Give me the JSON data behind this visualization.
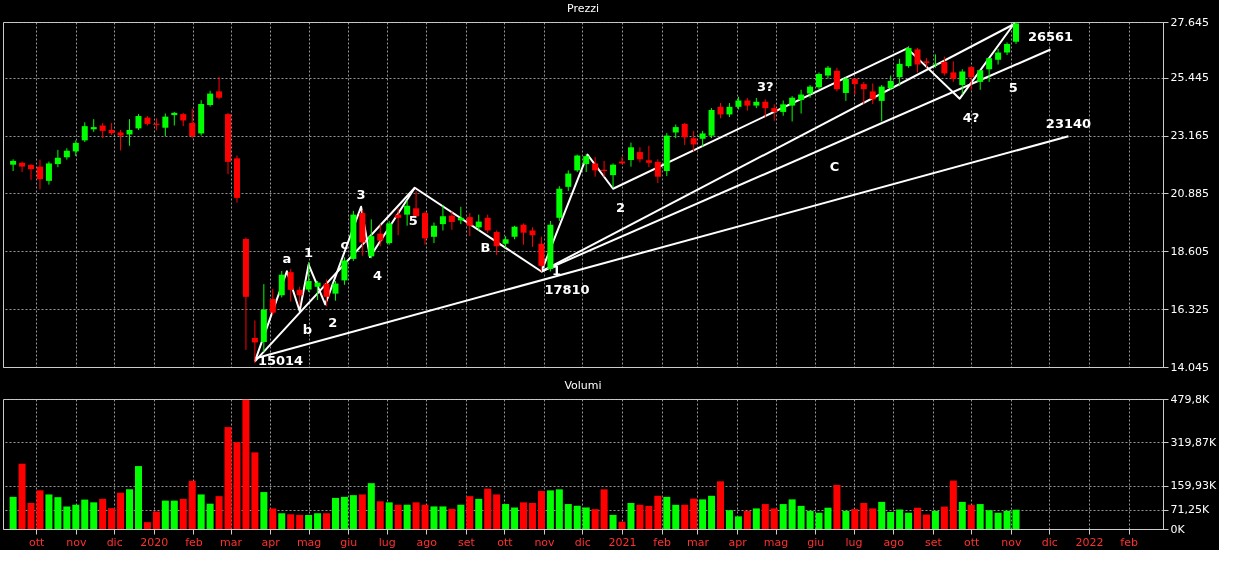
{
  "chart_data": [
    {
      "type": "candlestick",
      "title": "Prezzi",
      "x": [
        "2019-09-13",
        "2019-09-20",
        "2019-09-27",
        "2019-10-04",
        "2019-10-11",
        "2019-10-18",
        "2019-10-25",
        "2019-11-01",
        "2019-11-08",
        "2019-11-15",
        "2019-11-22",
        "2019-11-29",
        "2019-12-06",
        "2019-12-13",
        "2019-12-20",
        "2019-12-27",
        "2020-01-03",
        "2020-01-10",
        "2020-01-17",
        "2020-01-24",
        "2020-01-31",
        "2020-02-07",
        "2020-02-14",
        "2020-02-21",
        "2020-02-28",
        "2020-03-06",
        "2020-03-13",
        "2020-03-20",
        "2020-03-27",
        "2020-04-03",
        "2020-04-10",
        "2020-04-17",
        "2020-04-24",
        "2020-05-01",
        "2020-05-08",
        "2020-05-15",
        "2020-05-22",
        "2020-05-29",
        "2020-06-05",
        "2020-06-12",
        "2020-06-19",
        "2020-06-26",
        "2020-07-03",
        "2020-07-10",
        "2020-07-17",
        "2020-07-24",
        "2020-07-31",
        "2020-08-07",
        "2020-08-14",
        "2020-08-21",
        "2020-08-28",
        "2020-09-04",
        "2020-09-11",
        "2020-09-18",
        "2020-09-25",
        "2020-10-02",
        "2020-10-09",
        "2020-10-16",
        "2020-10-23",
        "2020-10-30",
        "2020-11-06",
        "2020-11-13",
        "2020-11-20",
        "2020-11-27",
        "2020-12-04",
        "2020-12-11",
        "2020-12-18",
        "2020-12-25",
        "2021-01-01",
        "2021-01-08",
        "2021-01-15",
        "2021-01-22",
        "2021-01-29",
        "2021-02-05",
        "2021-02-12",
        "2021-02-19",
        "2021-02-26",
        "2021-03-05",
        "2021-03-12",
        "2021-03-19",
        "2021-03-26",
        "2021-04-02",
        "2021-04-09",
        "2021-04-16",
        "2021-04-23",
        "2021-04-30",
        "2021-05-07",
        "2021-05-14",
        "2021-05-21",
        "2021-05-28",
        "2021-06-04",
        "2021-06-11",
        "2021-06-18",
        "2021-06-25",
        "2021-07-02",
        "2021-07-09",
        "2021-07-16",
        "2021-07-23",
        "2021-07-30",
        "2021-08-06",
        "2021-08-13",
        "2021-08-20",
        "2021-08-27",
        "2021-09-03",
        "2021-09-10",
        "2021-09-17",
        "2021-09-24",
        "2021-10-01",
        "2021-10-08",
        "2021-10-15",
        "2021-10-22",
        "2021-10-29",
        "2021-11-05"
      ],
      "ohlc": [
        [
          22020,
          22231,
          21770,
          22169
        ],
        [
          22094,
          22144,
          21733,
          21945
        ],
        [
          22007,
          22044,
          21421,
          21845
        ],
        [
          21945,
          22219,
          21048,
          21446
        ],
        [
          21384,
          22144,
          21234,
          22069
        ],
        [
          22044,
          22605,
          21920,
          22294
        ],
        [
          22318,
          22667,
          22219,
          22568
        ],
        [
          22543,
          22979,
          22356,
          22879
        ],
        [
          22979,
          23689,
          22916,
          23539
        ],
        [
          23415,
          23814,
          23315,
          23502
        ],
        [
          23564,
          23664,
          23066,
          23353
        ],
        [
          23390,
          23664,
          23191,
          23265
        ],
        [
          23290,
          23390,
          22580,
          23166
        ],
        [
          23215,
          23814,
          22767,
          23390
        ],
        [
          23452,
          24013,
          23390,
          23938
        ],
        [
          23876,
          23938,
          23564,
          23627
        ],
        [
          23639,
          23851,
          23378,
          23589
        ],
        [
          23477,
          24038,
          23141,
          23913
        ],
        [
          23975,
          24100,
          23564,
          24063
        ],
        [
          24013,
          24063,
          23540,
          23764
        ],
        [
          23664,
          24225,
          23066,
          23141
        ],
        [
          23253,
          24561,
          23166,
          24412
        ],
        [
          24374,
          24935,
          24312,
          24823
        ],
        [
          24910,
          25471,
          24599,
          24661
        ],
        [
          24013,
          24063,
          21646,
          22132
        ],
        [
          22269,
          22381,
          20524,
          20711
        ],
        [
          19091,
          19153,
          14718,
          16811
        ],
        [
          15191,
          15876,
          14195,
          15014
        ],
        [
          15029,
          17309,
          14630,
          16312
        ],
        [
          16724,
          17122,
          16088,
          16188
        ],
        [
          16874,
          17833,
          16786,
          17683
        ],
        [
          17783,
          17908,
          16624,
          17085
        ],
        [
          17085,
          17210,
          16462,
          16874
        ],
        [
          17097,
          18181,
          16998,
          17434
        ],
        [
          17210,
          17434,
          16686,
          17372
        ],
        [
          17334,
          17497,
          16437,
          16811
        ],
        [
          16936,
          17434,
          16661,
          17334
        ],
        [
          17459,
          18368,
          17285,
          18244
        ],
        [
          18306,
          20200,
          18231,
          20051
        ],
        [
          20113,
          20238,
          18431,
          18954
        ],
        [
          18406,
          19864,
          18331,
          19203
        ],
        [
          19303,
          19677,
          18805,
          19029
        ],
        [
          18929,
          19802,
          18867,
          19702
        ],
        [
          20051,
          20300,
          19241,
          19926
        ],
        [
          20051,
          20612,
          19615,
          20400
        ],
        [
          20300,
          20985,
          19926,
          19988
        ],
        [
          20113,
          20175,
          18867,
          19116
        ],
        [
          19178,
          19739,
          18929,
          19614
        ],
        [
          19677,
          20424,
          19427,
          19988
        ],
        [
          20013,
          20175,
          19452,
          19764
        ],
        [
          19826,
          20362,
          19677,
          19926
        ],
        [
          19951,
          20113,
          19203,
          19615
        ],
        [
          19552,
          20051,
          19427,
          19777
        ],
        [
          19926,
          20051,
          19328,
          19427
        ],
        [
          19365,
          19428,
          18456,
          18805
        ],
        [
          18904,
          19203,
          18742,
          19079
        ],
        [
          19178,
          19614,
          19079,
          19577
        ],
        [
          19652,
          19702,
          18867,
          19340
        ],
        [
          19427,
          19552,
          18779,
          19241
        ],
        [
          18904,
          19178,
          17810,
          18032
        ],
        [
          17907,
          19801,
          17810,
          19652
        ],
        [
          19926,
          21172,
          19801,
          21072
        ],
        [
          21147,
          21795,
          20985,
          21670
        ],
        [
          21795,
          22418,
          21732,
          22381
        ],
        [
          22044,
          22443,
          21732,
          22356
        ],
        [
          22069,
          22319,
          21546,
          21795
        ],
        [
          21820,
          22169,
          21546,
          21770
        ],
        [
          21608,
          22069,
          21109,
          22019
        ],
        [
          22144,
          22319,
          22044,
          22069
        ],
        [
          22206,
          22891,
          21944,
          22705
        ],
        [
          22518,
          22705,
          22107,
          22231
        ],
        [
          22194,
          22767,
          21920,
          22094
        ],
        [
          22131,
          22231,
          21297,
          21546
        ],
        [
          21770,
          23265,
          21571,
          23166
        ],
        [
          23290,
          23602,
          23066,
          23502
        ],
        [
          23627,
          23664,
          22792,
          23103
        ],
        [
          23066,
          23353,
          22543,
          22817
        ],
        [
          23041,
          23353,
          22730,
          23253
        ],
        [
          23166,
          24250,
          23066,
          24175
        ],
        [
          24300,
          24450,
          23850,
          24000
        ],
        [
          24000,
          24450,
          23900,
          24300
        ],
        [
          24300,
          24700,
          24200,
          24550
        ],
        [
          24550,
          24650,
          24150,
          24350
        ],
        [
          24350,
          24650,
          24250,
          24500
        ],
        [
          24500,
          24600,
          23900,
          24250
        ],
        [
          24250,
          24400,
          23750,
          24100
        ],
        [
          24100,
          24550,
          23950,
          24400
        ],
        [
          24349,
          24723,
          23726,
          24661
        ],
        [
          24573,
          24972,
          24038,
          24785
        ],
        [
          24823,
          25159,
          24661,
          25097
        ],
        [
          25072,
          25658,
          24997,
          25595
        ],
        [
          25533,
          25907,
          25408,
          25844
        ],
        [
          25720,
          25844,
          24910,
          24997
        ],
        [
          24848,
          25471,
          24536,
          25408
        ],
        [
          25408,
          25408,
          24785,
          25197
        ],
        [
          25197,
          25284,
          24412,
          24997
        ],
        [
          24910,
          25221,
          24412,
          24598
        ],
        [
          24536,
          25159,
          23726,
          25097
        ],
        [
          25034,
          25533,
          24972,
          25321
        ],
        [
          25471,
          26193,
          25122,
          25994
        ],
        [
          25907,
          26692,
          25844,
          26617
        ],
        [
          26567,
          26617,
          25658,
          25969
        ],
        [
          26094,
          26218,
          25844,
          26031
        ],
        [
          25969,
          26368,
          25844,
          25994
        ],
        [
          26069,
          26281,
          25533,
          25620
        ],
        [
          25658,
          26094,
          25284,
          25408
        ],
        [
          25159,
          25782,
          24785,
          25695
        ],
        [
          25869,
          25907,
          24972,
          25471
        ],
        [
          25284,
          25745,
          24972,
          25745
        ],
        [
          25782,
          26218,
          25284,
          26218
        ],
        [
          26156,
          26592,
          25969,
          26442
        ],
        [
          26442,
          26841,
          26343,
          26779
        ],
        [
          26866,
          27645,
          26780,
          27589
        ]
      ],
      "colors": [
        "#00ff00",
        "#ff0000",
        "#ff0000",
        "#ff0000",
        "#00ff00",
        "#00ff00",
        "#00ff00",
        "#00ff00",
        "#00ff00",
        "#00ff00",
        "#ff0000",
        "#ff0000",
        "#ff0000",
        "#00ff00",
        "#00ff00",
        "#ff0000",
        "#ff0000",
        "#00ff00",
        "#00ff00",
        "#ff0000",
        "#ff0000",
        "#00ff00",
        "#00ff00",
        "#ff0000",
        "#ff0000",
        "#ff0000",
        "#ff0000",
        "#ff0000",
        "#00ff00",
        "#ff0000",
        "#00ff00",
        "#ff0000",
        "#ff0000",
        "#00ff00",
        "#00ff00",
        "#ff0000",
        "#00ff00",
        "#00ff00",
        "#00ff00",
        "#ff0000",
        "#00ff00",
        "#ff0000",
        "#00ff00",
        "#ff0000",
        "#00ff00",
        "#ff0000",
        "#ff0000",
        "#00ff00",
        "#00ff00",
        "#ff0000",
        "#00ff00",
        "#ff0000",
        "#00ff00",
        "#ff0000",
        "#ff0000",
        "#00ff00",
        "#00ff00",
        "#ff0000",
        "#ff0000",
        "#ff0000",
        "#00ff00",
        "#00ff00",
        "#00ff00",
        "#00ff00",
        "#00ff00",
        "#ff0000",
        "#ff0000",
        "#00ff00",
        "#ff0000",
        "#00ff00",
        "#ff0000",
        "#ff0000",
        "#ff0000",
        "#00ff00",
        "#00ff00",
        "#ff0000",
        "#ff0000",
        "#00ff00",
        "#00ff00",
        "#ff0000",
        "#00ff00",
        "#00ff00",
        "#ff0000",
        "#00ff00",
        "#ff0000",
        "#ff0000",
        "#00ff00",
        "#00ff00",
        "#00ff00",
        "#00ff00",
        "#00ff00",
        "#00ff00",
        "#ff0000",
        "#00ff00",
        "#ff0000",
        "#ff0000",
        "#ff0000",
        "#00ff00",
        "#00ff00",
        "#00ff00",
        "#00ff00",
        "#ff0000",
        "#ff0000",
        "#00ff00",
        "#ff0000",
        "#ff0000",
        "#00ff00",
        "#ff0000",
        "#00ff00",
        "#00ff00",
        "#00ff00",
        "#00ff00",
        "#00ff00"
      ],
      "series": [
        {
          "type": "line",
          "color": "#ffffff",
          "x": [
            "2020-03-20",
            "2020-07-23",
            "2020-10-30",
            "2020-12-05",
            "2020-12-25",
            "2021-08-12",
            "2021-09-22",
            "2021-11-04"
          ],
          "values": [
            14269,
            21110,
            17810,
            22418,
            21072,
            26605,
            24623,
            27614
          ]
        },
        {
          "type": "line",
          "color": "#ffffff",
          "x": [
            "2020-10-30",
            "2021-11-04"
          ],
          "values": [
            17810,
            27576
          ]
        },
        {
          "type": "line",
          "color": "#ffffff",
          "x": [
            "2020-03-20",
            "2021-12-16"
          ],
          "values": [
            14381,
            23140
          ]
        },
        {
          "type": "line",
          "color": "#ffffff",
          "x": [
            "2020-10-30",
            "2021-12-02"
          ],
          "values": [
            17810,
            26561
          ]
        },
        {
          "type": "line",
          "color": "#ffffff",
          "x": [
            "2020-03-20",
            "2020-04-14",
            "2020-04-24",
            "2020-05-01",
            "2020-05-14",
            "2020-06-11",
            "2020-06-18",
            "2020-07-23"
          ],
          "values": [
            14269,
            17820,
            16250,
            18082,
            16512,
            20362,
            18381,
            21110
          ]
        }
      ],
      "annotations": [
        {
          "text": "15014",
          "x": "2020-03-20",
          "y": 15014
        },
        {
          "text": "a",
          "x": "2020-04-14",
          "y": 17820
        },
        {
          "text": "b",
          "x": "2020-04-24",
          "y": 16250
        },
        {
          "text": "1",
          "x": "2020-05-01",
          "y": 18082
        },
        {
          "text": "2",
          "x": "2020-05-14",
          "y": 16512
        },
        {
          "text": "c",
          "x": "2020-05-29",
          "y": 18368
        },
        {
          "text": "3",
          "x": "2020-06-11",
          "y": 20362
        },
        {
          "text": "4",
          "x": "2020-06-18",
          "y": 18381
        },
        {
          "text": "5",
          "x": "2020-07-16",
          "y": 20564
        },
        {
          "text": "B",
          "x": "2020-09-10",
          "y": 19477
        },
        {
          "text": "17810",
          "x": "2020-10-30",
          "y": 17810
        },
        {
          "text": "1",
          "x": "2020-11-05",
          "y": 18578
        },
        {
          "text": "2",
          "x": "2020-12-25",
          "y": 21072
        },
        {
          "text": "3?",
          "x": "2021-04-23",
          "y": 24600
        },
        {
          "text": "C",
          "x": "2021-06-10",
          "y": 22691
        },
        {
          "text": "4?",
          "x": "2021-09-22",
          "y": 24623
        },
        {
          "text": "5",
          "x": "2021-10-28",
          "y": 25791
        },
        {
          "text": "26561",
          "x": "2021-12-02",
          "y": 26561
        },
        {
          "text": "23140",
          "x": "2021-12-16",
          "y": 23140
        }
      ],
      "xlim": [
        "2019-09-09",
        "2022-02-24"
      ],
      "xticks": [
        {
          "value": "2019-10-01",
          "label": null
        },
        {
          "value": "2019-11-01",
          "label": null
        },
        {
          "value": "2019-12-01",
          "label": null
        },
        {
          "value": "2020-01-01",
          "label": null
        },
        {
          "value": "2020-02-01",
          "label": null
        },
        {
          "value": "2020-03-01",
          "label": null
        },
        {
          "value": "2020-04-01",
          "label": null
        },
        {
          "value": "2020-05-01",
          "label": null
        },
        {
          "value": "2020-06-01",
          "label": null
        },
        {
          "value": "2020-07-01",
          "label": null
        },
        {
          "value": "2020-08-01",
          "label": null
        },
        {
          "value": "2020-09-01",
          "label": null
        },
        {
          "value": "2020-10-01",
          "label": null
        },
        {
          "value": "2020-11-01",
          "label": null
        },
        {
          "value": "2020-12-01",
          "label": null
        },
        {
          "value": "2021-01-01",
          "label": null
        },
        {
          "value": "2021-02-01",
          "label": null
        },
        {
          "value": "2021-03-01",
          "label": null
        },
        {
          "value": "2021-04-01",
          "label": null
        },
        {
          "value": "2021-05-01",
          "label": null
        },
        {
          "value": "2021-06-01",
          "label": null
        },
        {
          "value": "2021-07-01",
          "label": null
        },
        {
          "value": "2021-08-01",
          "label": null
        },
        {
          "value": "2021-09-01",
          "label": null
        },
        {
          "value": "2021-10-01",
          "label": null
        },
        {
          "value": "2021-11-01",
          "label": null
        },
        {
          "value": "2021-12-01",
          "label": null
        },
        {
          "value": "2022-01-01",
          "label": null
        },
        {
          "value": "2022-02-01",
          "label": null
        }
      ],
      "ylim": [
        14045,
        27645
      ],
      "yticks": [
        {
          "value": 14045,
          "label": "14.045"
        },
        {
          "value": 16325,
          "label": "16.325"
        },
        {
          "value": 18605,
          "label": "18.605"
        },
        {
          "value": 20885,
          "label": "20.885"
        },
        {
          "value": 23165,
          "label": "23.165"
        },
        {
          "value": 25445,
          "label": "25.445"
        },
        {
          "value": 27645,
          "label": "27.645"
        }
      ],
      "grid": true,
      "tick_labels": "y"
    },
    {
      "type": "bar",
      "title": "Volumi",
      "x": [
        "2019-09-13",
        "2019-09-20",
        "2019-09-27",
        "2019-10-04",
        "2019-10-11",
        "2019-10-18",
        "2019-10-25",
        "2019-11-01",
        "2019-11-08",
        "2019-11-15",
        "2019-11-22",
        "2019-11-29",
        "2019-12-06",
        "2019-12-13",
        "2019-12-20",
        "2019-12-27",
        "2020-01-03",
        "2020-01-10",
        "2020-01-17",
        "2020-01-24",
        "2020-01-31",
        "2020-02-07",
        "2020-02-14",
        "2020-02-21",
        "2020-02-28",
        "2020-03-06",
        "2020-03-13",
        "2020-03-20",
        "2020-03-27",
        "2020-04-03",
        "2020-04-10",
        "2020-04-17",
        "2020-04-24",
        "2020-05-01",
        "2020-05-08",
        "2020-05-15",
        "2020-05-22",
        "2020-05-29",
        "2020-06-05",
        "2020-06-12",
        "2020-06-19",
        "2020-06-26",
        "2020-07-03",
        "2020-07-10",
        "2020-07-17",
        "2020-07-24",
        "2020-07-31",
        "2020-08-07",
        "2020-08-14",
        "2020-08-21",
        "2020-08-28",
        "2020-09-04",
        "2020-09-11",
        "2020-09-18",
        "2020-09-25",
        "2020-10-02",
        "2020-10-09",
        "2020-10-16",
        "2020-10-23",
        "2020-10-30",
        "2020-11-06",
        "2020-11-13",
        "2020-11-20",
        "2020-11-27",
        "2020-12-04",
        "2020-12-11",
        "2020-12-18",
        "2020-12-25",
        "2021-01-01",
        "2021-01-08",
        "2021-01-15",
        "2021-01-22",
        "2021-01-29",
        "2021-02-05",
        "2021-02-12",
        "2021-02-19",
        "2021-02-26",
        "2021-03-05",
        "2021-03-12",
        "2021-03-19",
        "2021-03-26",
        "2021-04-02",
        "2021-04-09",
        "2021-04-16",
        "2021-04-23",
        "2021-04-30",
        "2021-05-07",
        "2021-05-14",
        "2021-05-21",
        "2021-05-28",
        "2021-06-04",
        "2021-06-11",
        "2021-06-18",
        "2021-06-25",
        "2021-07-02",
        "2021-07-09",
        "2021-07-16",
        "2021-07-23",
        "2021-07-30",
        "2021-08-06",
        "2021-08-13",
        "2021-08-20",
        "2021-08-27",
        "2021-09-03",
        "2021-09-10",
        "2021-09-17",
        "2021-09-24",
        "2021-10-01",
        "2021-10-08",
        "2021-10-15",
        "2021-10-22",
        "2021-10-29",
        "2021-11-05"
      ],
      "values": [
        118600,
        241000,
        95900,
        142600,
        127500,
        117400,
        83300,
        89600,
        108500,
        98400,
        111100,
        77000,
        133800,
        146400,
        232200,
        25200,
        64400,
        104700,
        104700,
        111100,
        177900,
        127500,
        93400,
        121200,
        376100,
        320500,
        477000,
        282700,
        136300,
        75700,
        58100,
        54300,
        51700,
        51700,
        58100,
        58100,
        114800,
        118600,
        124900,
        127500,
        169100,
        102200,
        98400,
        89600,
        89600,
        98400,
        89600,
        83300,
        83300,
        74500,
        89600,
        121200,
        111100,
        148900,
        127500,
        92100,
        79500,
        98400,
        95900,
        140100,
        142600,
        146400,
        92100,
        85800,
        79500,
        73200,
        146400,
        52000,
        26700,
        96000,
        89300,
        85300,
        122600,
        118600,
        89300,
        89300,
        112000,
        109300,
        122600,
        176000,
        69300,
        46700,
        66700,
        76000,
        92000,
        76000,
        92000,
        109300,
        85300,
        66700,
        60000,
        78600,
        162600,
        66700,
        73300,
        96000,
        76000,
        100000,
        62700,
        72000,
        60000,
        78600,
        53300,
        66700,
        82600,
        178600,
        100000,
        89300,
        92000,
        69300,
        60000,
        66700,
        71250
      ],
      "colors": [
        "#00ff00",
        "#ff0000",
        "#ff0000",
        "#ff0000",
        "#00ff00",
        "#00ff00",
        "#00ff00",
        "#00ff00",
        "#00ff00",
        "#00ff00",
        "#ff0000",
        "#ff0000",
        "#ff0000",
        "#00ff00",
        "#00ff00",
        "#ff0000",
        "#ff0000",
        "#00ff00",
        "#00ff00",
        "#ff0000",
        "#ff0000",
        "#00ff00",
        "#00ff00",
        "#ff0000",
        "#ff0000",
        "#ff0000",
        "#ff0000",
        "#ff0000",
        "#00ff00",
        "#ff0000",
        "#00ff00",
        "#ff0000",
        "#ff0000",
        "#00ff00",
        "#00ff00",
        "#ff0000",
        "#00ff00",
        "#00ff00",
        "#00ff00",
        "#ff0000",
        "#00ff00",
        "#ff0000",
        "#00ff00",
        "#ff0000",
        "#00ff00",
        "#ff0000",
        "#ff0000",
        "#00ff00",
        "#00ff00",
        "#ff0000",
        "#00ff00",
        "#ff0000",
        "#00ff00",
        "#ff0000",
        "#ff0000",
        "#00ff00",
        "#00ff00",
        "#ff0000",
        "#ff0000",
        "#ff0000",
        "#00ff00",
        "#00ff00",
        "#00ff00",
        "#00ff00",
        "#00ff00",
        "#ff0000",
        "#ff0000",
        "#00ff00",
        "#ff0000",
        "#00ff00",
        "#ff0000",
        "#ff0000",
        "#ff0000",
        "#00ff00",
        "#00ff00",
        "#ff0000",
        "#ff0000",
        "#00ff00",
        "#00ff00",
        "#ff0000",
        "#00ff00",
        "#00ff00",
        "#ff0000",
        "#00ff00",
        "#ff0000",
        "#ff0000",
        "#00ff00",
        "#00ff00",
        "#00ff00",
        "#00ff00",
        "#00ff00",
        "#00ff00",
        "#ff0000",
        "#00ff00",
        "#ff0000",
        "#ff0000",
        "#ff0000",
        "#00ff00",
        "#00ff00",
        "#00ff00",
        "#00ff00",
        "#ff0000",
        "#ff0000",
        "#00ff00",
        "#ff0000",
        "#ff0000",
        "#00ff00",
        "#ff0000",
        "#00ff00",
        "#00ff00",
        "#00ff00",
        "#00ff00",
        "#00ff00"
      ],
      "xlim": [
        "2019-09-09",
        "2022-02-24"
      ],
      "xticks": [
        {
          "value": "2019-10-01",
          "label": "ott"
        },
        {
          "value": "2019-11-01",
          "label": "nov"
        },
        {
          "value": "2019-12-01",
          "label": "dic"
        },
        {
          "value": "2020-01-01",
          "label": "2020"
        },
        {
          "value": "2020-02-01",
          "label": "feb"
        },
        {
          "value": "2020-03-01",
          "label": "mar"
        },
        {
          "value": "2020-04-01",
          "label": "apr"
        },
        {
          "value": "2020-05-01",
          "label": "mag"
        },
        {
          "value": "2020-06-01",
          "label": "giu"
        },
        {
          "value": "2020-07-01",
          "label": "lug"
        },
        {
          "value": "2020-08-01",
          "label": "ago"
        },
        {
          "value": "2020-09-01",
          "label": "set"
        },
        {
          "value": "2020-10-01",
          "label": "ott"
        },
        {
          "value": "2020-11-01",
          "label": "nov"
        },
        {
          "value": "2020-12-01",
          "label": "dic"
        },
        {
          "value": "2021-01-01",
          "label": "2021"
        },
        {
          "value": "2021-02-01",
          "label": "feb"
        },
        {
          "value": "2021-03-01",
          "label": "mar"
        },
        {
          "value": "2021-04-01",
          "label": "apr"
        },
        {
          "value": "2021-05-01",
          "label": "mag"
        },
        {
          "value": "2021-06-01",
          "label": "giu"
        },
        {
          "value": "2021-07-01",
          "label": "lug"
        },
        {
          "value": "2021-08-01",
          "label": "ago"
        },
        {
          "value": "2021-09-01",
          "label": "set"
        },
        {
          "value": "2021-10-01",
          "label": "ott"
        },
        {
          "value": "2021-11-01",
          "label": "nov"
        },
        {
          "value": "2021-12-01",
          "label": "dic"
        },
        {
          "value": "2022-01-01",
          "label": "2022"
        },
        {
          "value": "2022-02-01",
          "label": "feb"
        }
      ],
      "ylim": [
        0,
        479800
      ],
      "yticks": [
        {
          "value": 0,
          "label": "0K"
        },
        {
          "value": 71250,
          "label": "71,25K"
        },
        {
          "value": 159930,
          "label": "159,93K"
        },
        {
          "value": 319870,
          "label": "319,87K"
        },
        {
          "value": 479800,
          "label": "479,8K"
        }
      ],
      "grid": true
    }
  ]
}
